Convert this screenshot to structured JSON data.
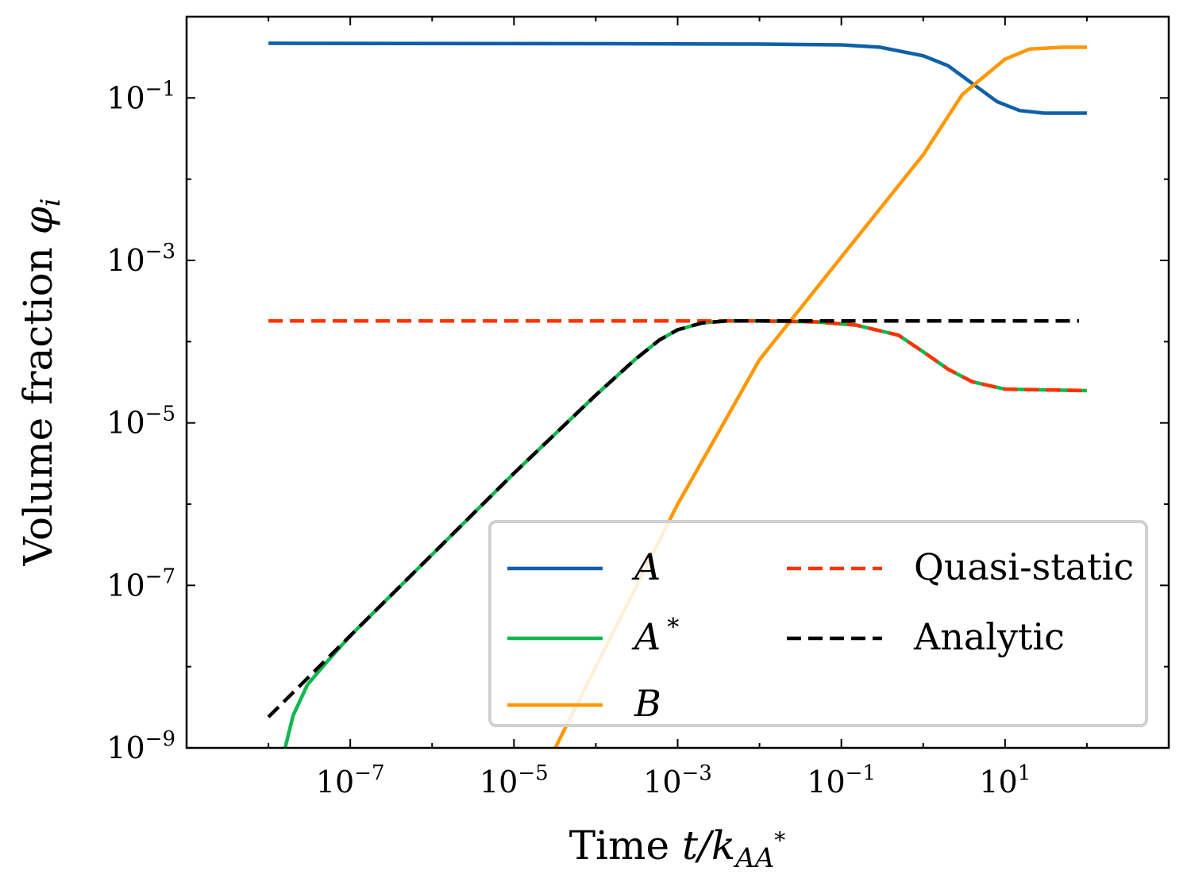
{
  "chart_data": {
    "type": "line",
    "xscale": "log",
    "yscale": "log",
    "xlim": [
      1e-09,
      1000
    ],
    "ylim": [
      1e-09,
      1
    ],
    "xlabel": {
      "main": "Time ",
      "italic": "t/k",
      "sub": "AA",
      "sup": "*"
    },
    "ylabel": {
      "main": "Volume fraction ",
      "symbol": "φ",
      "sub": "i"
    },
    "x_ticks": [
      {
        "value": 1e-07,
        "base": "10",
        "exp": "−7"
      },
      {
        "value": 1e-05,
        "base": "10",
        "exp": "−5"
      },
      {
        "value": 0.001,
        "base": "10",
        "exp": "−3"
      },
      {
        "value": 0.1,
        "base": "10",
        "exp": "−1"
      },
      {
        "value": 10,
        "base": "10",
        "exp": "1"
      }
    ],
    "y_ticks": [
      {
        "value": 0.1,
        "base": "10",
        "exp": "−1"
      },
      {
        "value": 0.001,
        "base": "10",
        "exp": "−3"
      },
      {
        "value": 1e-05,
        "base": "10",
        "exp": "−5"
      },
      {
        "value": 1e-07,
        "base": "10",
        "exp": "−7"
      },
      {
        "value": 1e-09,
        "base": "10",
        "exp": "−9"
      }
    ],
    "legend_position": "lower-right",
    "series": [
      {
        "name": "A",
        "label_main": "A",
        "label_sup": "",
        "color": "#1060a8",
        "dash": "solid",
        "points": [
          [
            1e-08,
            0.47
          ],
          [
            0.0001,
            0.465
          ],
          [
            0.01,
            0.46
          ],
          [
            0.1,
            0.45
          ],
          [
            0.3,
            0.42
          ],
          [
            1,
            0.33
          ],
          [
            2,
            0.25
          ],
          [
            4,
            0.15
          ],
          [
            8,
            0.09
          ],
          [
            15,
            0.07
          ],
          [
            30,
            0.065
          ],
          [
            100,
            0.065
          ]
        ]
      },
      {
        "name": "A*",
        "label_main": "A",
        "label_sup": "*",
        "color": "#10b850",
        "dash": "solid",
        "points": [
          [
            1.6e-08,
            1e-09
          ],
          [
            2e-08,
            2.5e-09
          ],
          [
            3e-08,
            6e-09
          ],
          [
            5e-08,
            1.1e-08
          ],
          [
            1e-07,
            2.4e-08
          ],
          [
            1e-06,
            2.4e-07
          ],
          [
            1e-05,
            2.4e-06
          ],
          [
            0.0001,
            2.2e-05
          ],
          [
            0.0003,
            6e-05
          ],
          [
            0.0006,
            0.000105
          ],
          [
            0.001,
            0.00014
          ],
          [
            0.002,
            0.00017
          ],
          [
            0.004,
            0.00018
          ],
          [
            0.01,
            0.00018
          ],
          [
            0.05,
            0.000175
          ],
          [
            0.15,
            0.00016
          ],
          [
            0.5,
            0.00012
          ],
          [
            1,
            7.5e-05
          ],
          [
            2,
            4.6e-05
          ],
          [
            4,
            3.2e-05
          ],
          [
            10,
            2.6e-05
          ],
          [
            100,
            2.5e-05
          ]
        ]
      },
      {
        "name": "B",
        "label_main": "B",
        "label_sup": "",
        "color": "#ff9800",
        "dash": "solid",
        "points": [
          [
            3.2e-05,
            1e-09
          ],
          [
            0.0001,
            1e-08
          ],
          [
            0.001,
            1e-06
          ],
          [
            0.003,
            7e-06
          ],
          [
            0.01,
            6e-05
          ],
          [
            0.1,
            0.0011
          ],
          [
            1,
            0.02
          ],
          [
            3,
            0.11
          ],
          [
            10,
            0.3
          ],
          [
            20,
            0.4
          ],
          [
            50,
            0.42
          ],
          [
            100,
            0.42
          ]
        ]
      },
      {
        "name": "Quasi-static",
        "label_main": "Quasi-static",
        "label_sup": "",
        "color": "#ff3300",
        "dash": "dashed",
        "points": [
          [
            1e-08,
            0.00018
          ],
          [
            0.01,
            0.00018
          ],
          [
            0.05,
            0.000175
          ],
          [
            0.15,
            0.00016
          ],
          [
            0.5,
            0.00012
          ],
          [
            1,
            7.5e-05
          ],
          [
            2,
            4.6e-05
          ],
          [
            4,
            3.2e-05
          ],
          [
            10,
            2.6e-05
          ],
          [
            100,
            2.5e-05
          ]
        ]
      },
      {
        "name": "Analytic",
        "label_main": "Analytic",
        "label_sup": "",
        "color": "#000000",
        "dash": "dashed",
        "points": [
          [
            1e-08,
            2.4e-09
          ],
          [
            1e-07,
            2.4e-08
          ],
          [
            1e-06,
            2.4e-07
          ],
          [
            1e-05,
            2.4e-06
          ],
          [
            0.0001,
            2.2e-05
          ],
          [
            0.0003,
            6e-05
          ],
          [
            0.0006,
            0.000105
          ],
          [
            0.001,
            0.00014
          ],
          [
            0.002,
            0.00017
          ],
          [
            0.004,
            0.00018
          ],
          [
            80,
            0.00018
          ]
        ]
      }
    ],
    "legend_layout": [
      [
        0,
        3
      ],
      [
        1,
        4
      ],
      [
        2,
        -1
      ]
    ]
  }
}
